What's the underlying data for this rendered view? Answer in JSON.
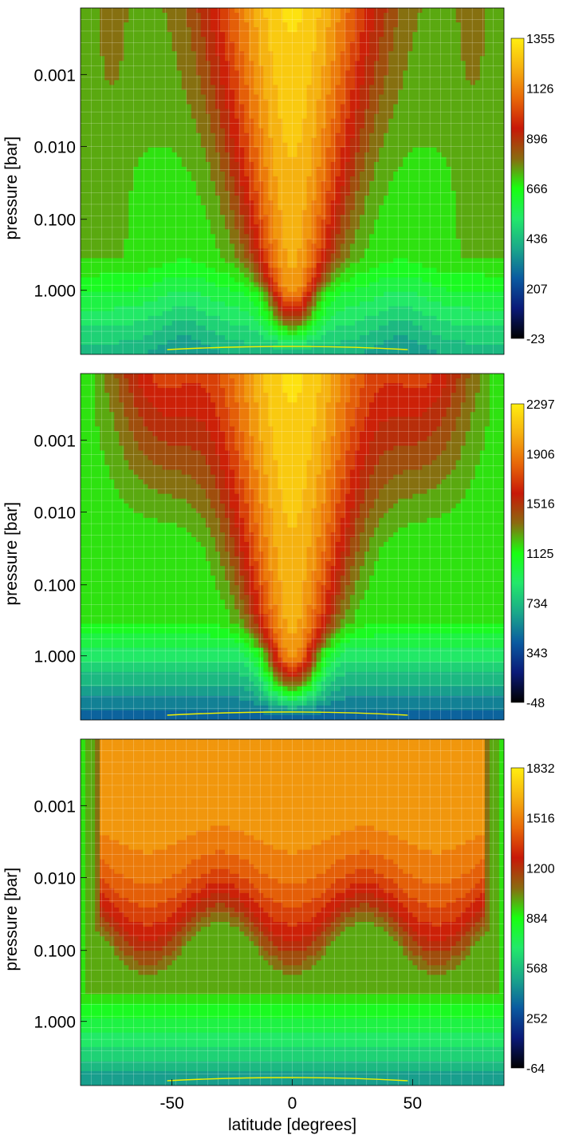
{
  "chart_data": [
    {
      "type": "heatmap",
      "title": "",
      "xlabel": "",
      "ylabel": "pressure [bar]",
      "y_scale": "log",
      "y_inverted": true,
      "y_ticks": [
        "0.001",
        "0.010",
        "0.100",
        "1.000"
      ],
      "x_ticks": [],
      "xlim": [
        -88,
        88
      ],
      "colorbar_ticks": [
        "1355",
        "1126",
        "896",
        "666",
        "436",
        "207",
        "-23"
      ],
      "colorbar_range": [
        -23,
        1355
      ],
      "contour_color": "#f0f000",
      "grid": true
    },
    {
      "type": "heatmap",
      "title": "",
      "xlabel": "",
      "ylabel": "pressure [bar]",
      "y_scale": "log",
      "y_inverted": true,
      "y_ticks": [
        "0.001",
        "0.010",
        "0.100",
        "1.000"
      ],
      "x_ticks": [],
      "xlim": [
        -88,
        88
      ],
      "colorbar_ticks": [
        "2297",
        "1906",
        "1516",
        "1125",
        "734",
        "343",
        "-48"
      ],
      "colorbar_range": [
        -48,
        2297
      ],
      "contour_color": "#f0f000",
      "grid": true
    },
    {
      "type": "heatmap",
      "title": "",
      "xlabel": "latitude [degrees]",
      "ylabel": "pressure [bar]",
      "y_scale": "log",
      "y_inverted": true,
      "y_ticks": [
        "0.001",
        "0.010",
        "0.100",
        "1.000"
      ],
      "x_ticks": [
        "-50",
        "0",
        "50"
      ],
      "xlim": [
        -88,
        88
      ],
      "colorbar_ticks": [
        "1832",
        "1516",
        "1200",
        "884",
        "568",
        "252",
        "-64"
      ],
      "colorbar_range": [
        -64,
        1832
      ],
      "contour_color": "#f0f000",
      "grid": true
    }
  ],
  "colors": {
    "colormap": [
      "#000000",
      "#0a1a78",
      "#0a5aa0",
      "#1aa88a",
      "#22e86a",
      "#18ff10",
      "#8a6a10",
      "#c81808",
      "#e86808",
      "#f5b010",
      "#ffee10"
    ],
    "contour": "#f0f000"
  }
}
